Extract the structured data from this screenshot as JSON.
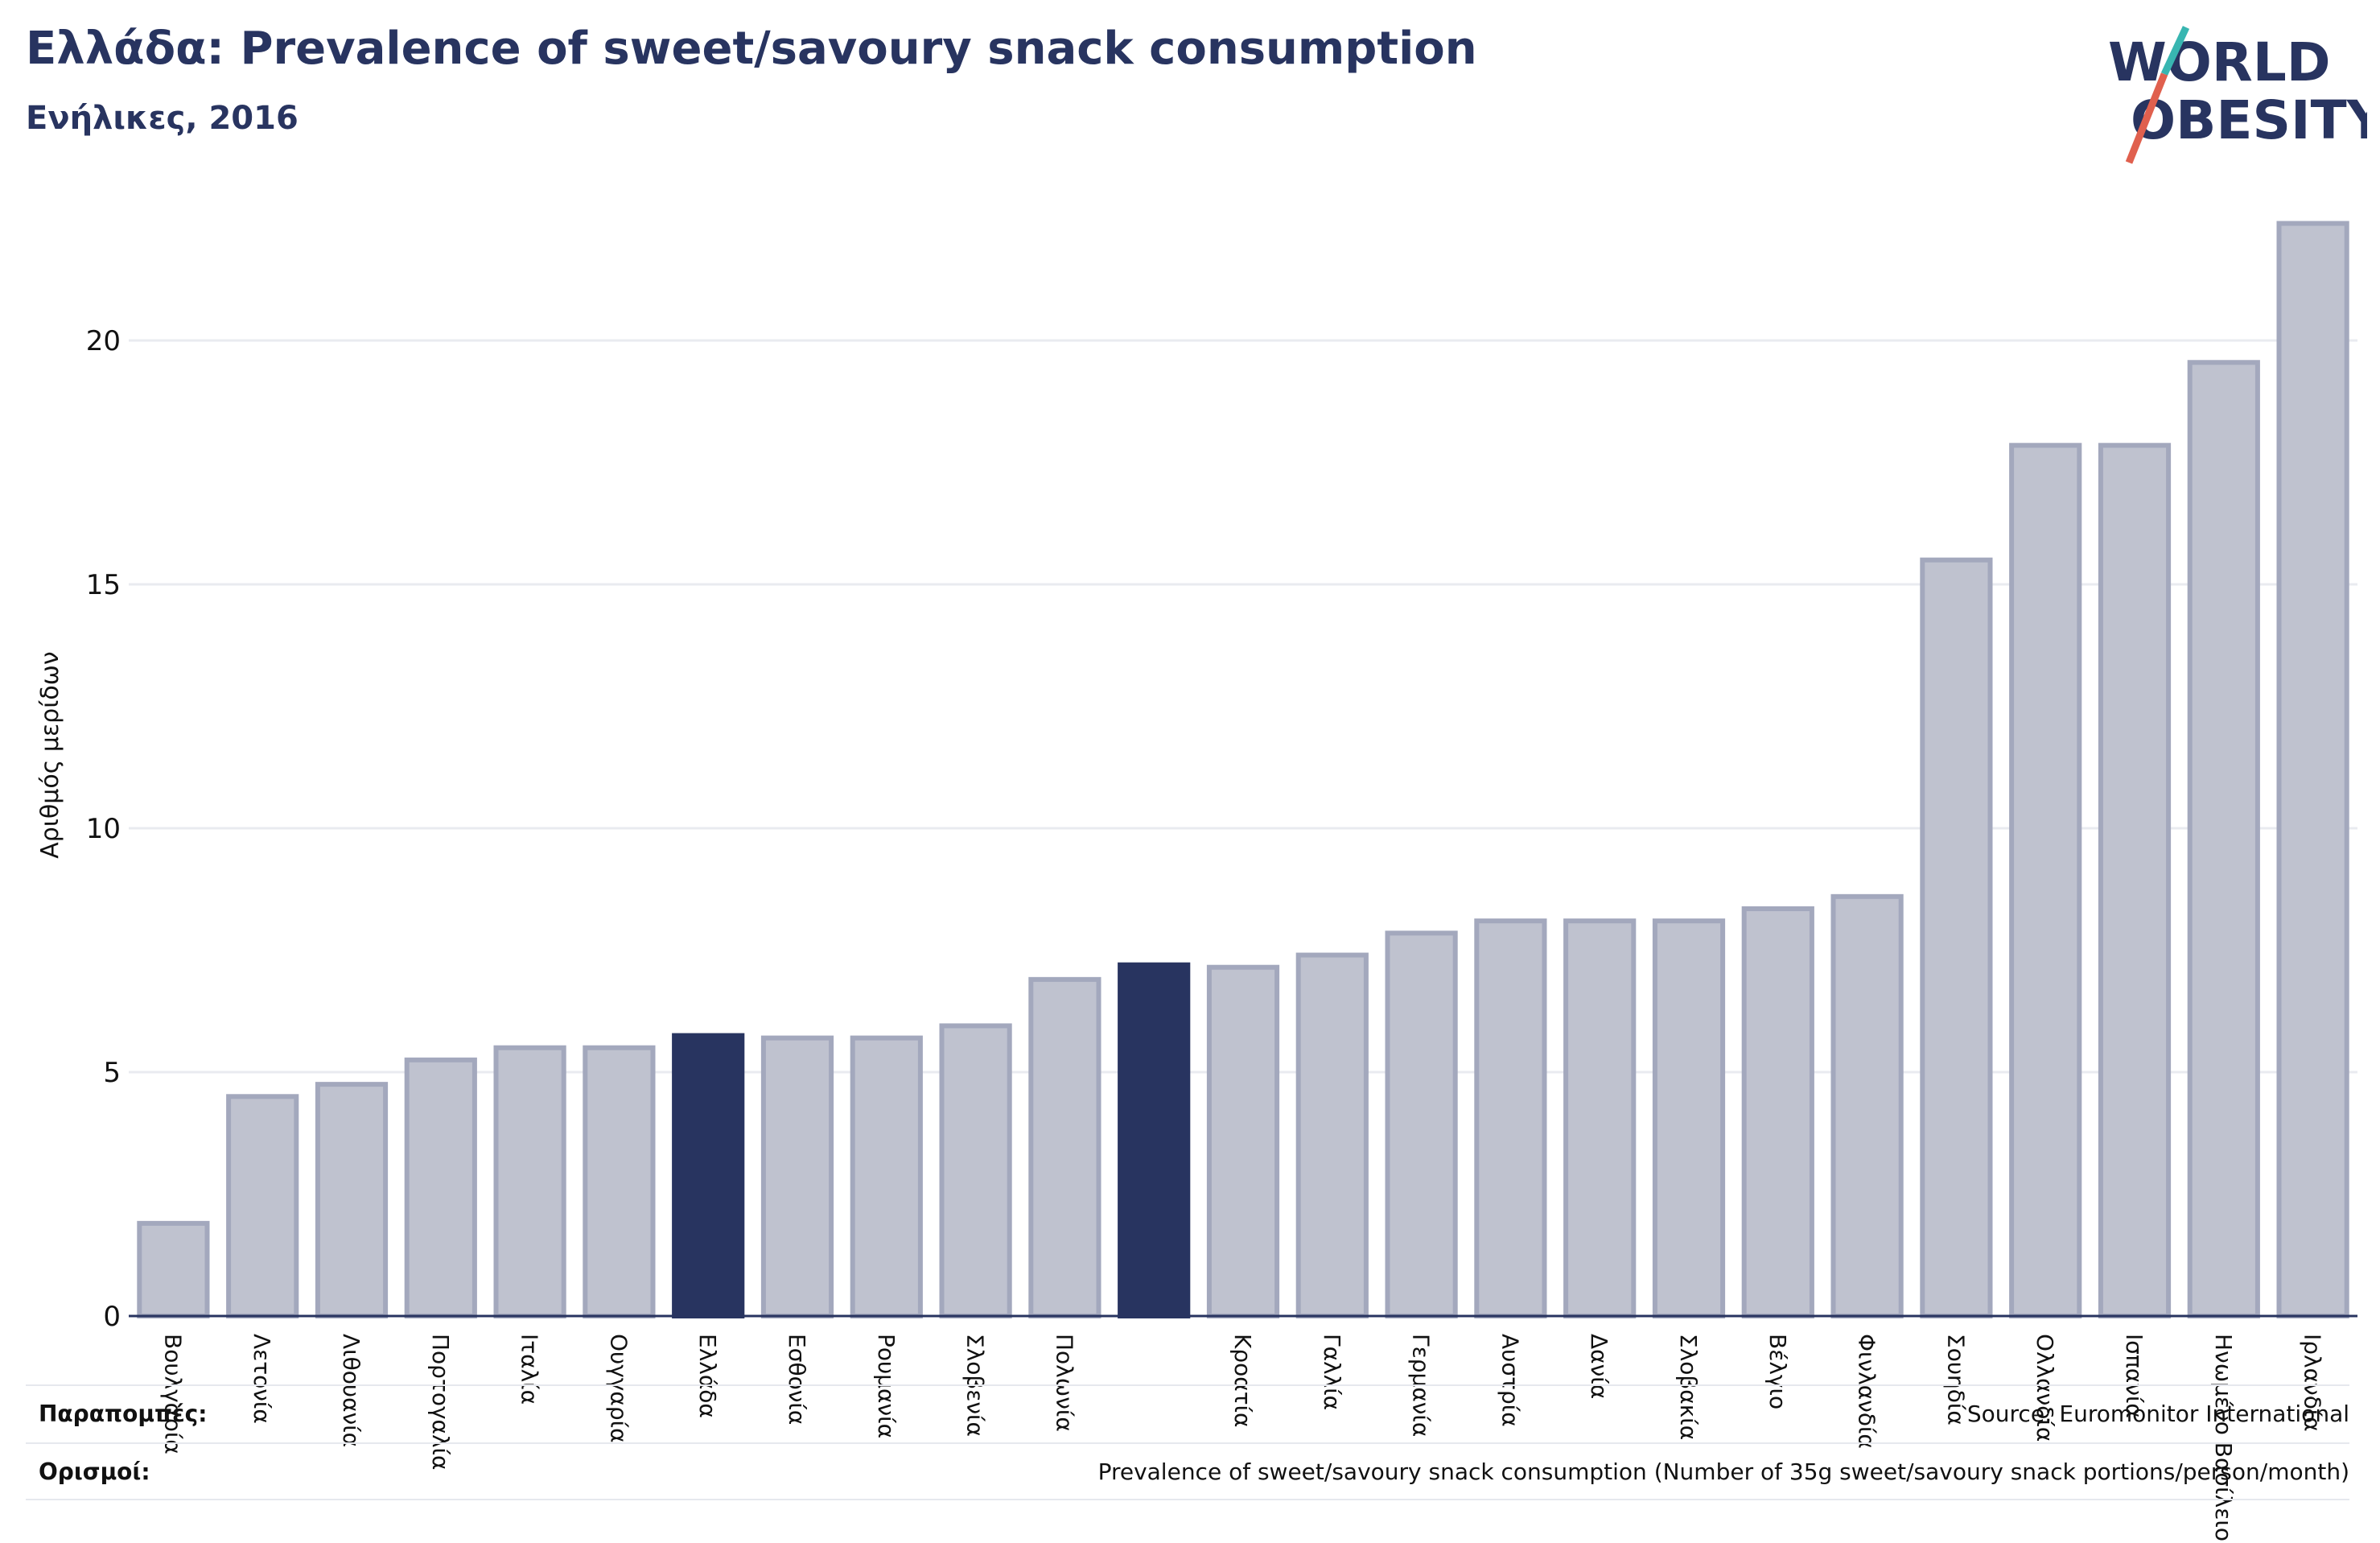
{
  "header": {
    "title": "Ελλάδα: Prevalence of sweet/savoury snack consumption",
    "subtitle": "Ενήλικες, 2016"
  },
  "logo": {
    "line1": "WORLD",
    "line2": "OBESITY"
  },
  "colors": {
    "highlight": "#283460",
    "bar": "#bfc2cf",
    "bar_border": "#a3a8bd",
    "grid": "#e9ebf0",
    "axis": "#283460"
  },
  "footer": {
    "references_label": "Παραπομπές:",
    "references_value": "Source: Euromonitor International",
    "definitions_label": "Ορισμοί:",
    "definitions_value": "Prevalence of sweet/savoury snack consumption (Number of 35g sweet/savoury snack portions/person/month)"
  },
  "chart_data": {
    "type": "bar",
    "ylabel": "Αριθμός μερίδων",
    "ylim": [
      0,
      23
    ],
    "yticks": [
      0,
      5,
      10,
      15,
      20
    ],
    "grid": true,
    "categories": [
      "Βουλγαρία",
      "Λετονία",
      "Λιθουανία",
      "Πορτογαλία",
      "Ιταλία",
      "Ουγγαρία",
      "Ελλάδα",
      "Εσθονία",
      "Ρουμανία",
      "Σλοβενία",
      "Πολωνία",
      "",
      "Κροατία",
      "Γαλλία",
      "Γερμανία",
      "Αυστρία",
      "Δανία",
      "Σλοβακία",
      "Βέλγιο",
      "Φινλανδία",
      "Σουηδία",
      "Ολλανδία",
      "Ισπανία",
      "Ηνωμένο Βασίλειο",
      "Ιρλανδία"
    ],
    "values": [
      1.9,
      4.5,
      4.75,
      5.25,
      5.5,
      5.5,
      5.75,
      5.7,
      5.7,
      5.95,
      6.9,
      7.2,
      7.15,
      7.4,
      7.85,
      8.1,
      8.1,
      8.1,
      8.35,
      8.6,
      15.5,
      17.85,
      17.85,
      19.55,
      22.4
    ],
    "highlighted": [
      6,
      11
    ]
  }
}
